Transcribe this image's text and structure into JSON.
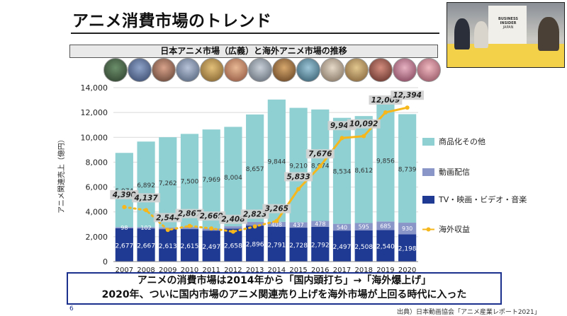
{
  "slide": {
    "title": "アニメ消費市場のトレンド",
    "subtitle": "日本アニメ市場（広義）と海外アニメ市場の推移",
    "bottom_line1": "アニメの消費市場は2014年から「国内頭打ち」→「海外爆上げ」",
    "bottom_line2": "2020年、ついに国内市場のアニメ関連売り上げを海外市場が上回る時代に入った",
    "page_number": "6",
    "source": "出典）日本動画協会「アニメ産業レポート2021」"
  },
  "video": {
    "logo_line1": "BUSINESS",
    "logo_line2": "INSIDER",
    "logo_line3": "JAPAN"
  },
  "colors": {
    "merch": "#8fd0d3",
    "streaming": "#8a95c8",
    "tv": "#1f3a93",
    "overseas": "#f5b71b"
  },
  "chart_data": {
    "type": "bar",
    "ylabel": "アニメ関連売上（億円）",
    "ylim": [
      0,
      14000
    ],
    "yticks": [
      "0",
      "2,000",
      "4,000",
      "6,000",
      "8,000",
      "10,000",
      "12,000",
      "14,000"
    ],
    "categories": [
      "2007",
      "2008",
      "2009",
      "2010",
      "2011",
      "2012",
      "2013",
      "2014",
      "2015",
      "2016",
      "2017",
      "2018",
      "2019",
      "2020"
    ],
    "series": [
      {
        "name": "TV・映画・ビデオ・音楽",
        "values": [
          2677,
          2667,
          2613,
          2615,
          2497,
          2658,
          2896,
          2791,
          2728,
          2792,
          2497,
          2508,
          2540,
          2198
        ],
        "labels": [
          "2,677",
          "2,667",
          "2,613",
          "2,615",
          "2,497",
          "2,658",
          "2,896",
          "2,791",
          "2,728",
          "2,792",
          "2,497",
          "2,508",
          "2,540",
          "2,198"
        ]
      },
      {
        "name": "動画配信",
        "values": [
          98,
          102,
          135,
          163,
          168,
          183,
          289,
          408,
          437,
          478,
          540,
          595,
          685,
          930
        ],
        "labels": [
          "98",
          "102",
          "",
          "",
          "",
          "",
          "",
          "408",
          "437",
          "478",
          "540",
          "595",
          "685",
          "930"
        ]
      },
      {
        "name": "商品化その他",
        "values": [
          5974,
          6892,
          7262,
          7500,
          7969,
          8004,
          8657,
          9844,
          9210,
          8974,
          8534,
          8612,
          9856,
          8739
        ],
        "labels": [
          "5,974",
          "6,892",
          "7,262",
          "7,500",
          "7,969",
          "8,004",
          "8,657",
          "9,844",
          "9,210",
          "8,974",
          "8,534",
          "8,612",
          "9,856",
          "8,739"
        ]
      },
      {
        "name": "海外収益",
        "type": "line",
        "values": [
          4390,
          4137,
          2544,
          2867,
          2669,
          2408,
          2823,
          3265,
          5833,
          7676,
          9948,
          10092,
          12009,
          12394
        ],
        "labels": [
          "4,390",
          "4,137",
          "2,544",
          "2,867",
          "2,669",
          "2,408",
          "2,823",
          "3,265",
          "5,833",
          "7,676",
          "9,948",
          "10,092",
          "12,009",
          "12,394"
        ]
      }
    ]
  }
}
